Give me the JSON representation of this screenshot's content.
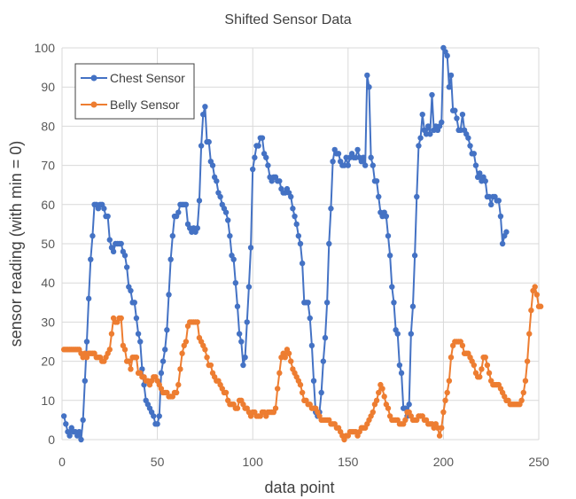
{
  "chart_data": {
    "type": "line",
    "title": "Shifted Sensor Data",
    "xlabel": "data point",
    "ylabel": "sensor reading (with min = 0)",
    "xlim": [
      0,
      250
    ],
    "ylim": [
      0,
      100
    ],
    "x_ticks": [
      "0",
      "50",
      "100",
      "150",
      "200",
      "250"
    ],
    "y_ticks": [
      "0",
      "10",
      "20",
      "30",
      "40",
      "50",
      "60",
      "70",
      "80",
      "90",
      "100"
    ],
    "grid": true,
    "legend_position": "top-left",
    "series": [
      {
        "name": "Chest Sensor",
        "color": "#4472c4",
        "marker": "circle",
        "values": [
          6,
          4,
          2,
          1,
          3,
          2,
          2,
          1,
          2,
          0,
          5,
          15,
          25,
          36,
          46,
          52,
          60,
          60,
          59,
          60,
          60,
          59,
          57,
          57,
          51,
          49,
          48,
          50,
          50,
          50,
          50,
          48,
          47,
          44,
          39,
          38,
          35,
          35,
          31,
          27,
          25,
          18,
          14,
          10,
          9,
          8,
          7,
          6,
          4,
          4,
          6,
          17,
          20,
          23,
          28,
          37,
          46,
          52,
          57,
          57,
          58,
          60,
          60,
          60,
          60,
          55,
          54,
          53,
          54,
          53,
          54,
          61,
          75,
          83,
          85,
          76,
          76,
          71,
          70,
          67,
          66,
          63,
          62,
          60,
          59,
          58,
          56,
          52,
          47,
          46,
          40,
          34,
          27,
          25,
          19,
          21,
          30,
          39,
          49,
          69,
          72,
          75,
          75,
          77,
          77,
          73,
          72,
          70,
          67,
          66,
          67,
          67,
          66,
          66,
          64,
          63,
          63,
          64,
          63,
          62,
          59,
          57,
          55,
          52,
          50,
          45,
          35,
          35,
          35,
          31,
          24,
          15,
          7,
          6,
          7,
          12,
          20,
          26,
          35,
          50,
          59,
          71,
          74,
          73,
          73,
          71,
          70,
          70,
          72,
          70,
          72,
          73,
          72,
          72,
          74,
          72,
          71,
          72,
          70,
          93,
          90,
          72,
          70,
          66,
          66,
          62,
          58,
          57,
          58,
          57,
          52,
          47,
          39,
          35,
          28,
          27,
          19,
          17,
          8,
          8,
          6,
          9,
          27,
          34,
          47,
          62,
          75,
          77,
          83,
          79,
          78,
          80,
          78,
          88,
          79,
          80,
          79,
          80,
          81,
          100,
          99,
          98,
          90,
          93,
          84,
          84,
          82,
          79,
          79,
          83,
          79,
          78,
          77,
          75,
          73,
          73,
          70,
          67,
          68,
          66,
          67,
          66,
          62,
          62,
          60,
          62,
          62,
          61,
          61,
          57,
          50,
          52,
          53
        ]
      },
      {
        "name": "Belly Sensor",
        "color": "#ed7d31",
        "marker": "circle",
        "values": [
          23,
          23,
          23,
          23,
          23,
          23,
          23,
          23,
          23,
          22,
          21,
          22,
          21,
          22,
          22,
          22,
          22,
          21,
          21,
          21,
          20,
          20,
          21,
          22,
          23,
          27,
          31,
          30,
          30,
          31,
          31,
          24,
          23,
          20,
          20,
          18,
          21,
          21,
          21,
          17,
          17,
          16,
          16,
          15,
          15,
          14,
          15,
          16,
          16,
          15,
          14,
          13,
          12,
          12,
          12,
          11,
          11,
          11,
          12,
          12,
          14,
          18,
          22,
          24,
          25,
          29,
          30,
          30,
          30,
          30,
          30,
          26,
          25,
          24,
          23,
          21,
          19,
          19,
          17,
          16,
          15,
          15,
          14,
          13,
          12,
          12,
          10,
          9,
          9,
          9,
          8,
          8,
          10,
          10,
          9,
          8,
          8,
          7,
          6,
          7,
          7,
          6,
          6,
          6,
          7,
          7,
          6,
          7,
          7,
          7,
          7,
          8,
          13,
          17,
          21,
          22,
          21,
          23,
          22,
          20,
          18,
          17,
          16,
          15,
          14,
          12,
          10,
          10,
          9,
          9,
          8,
          8,
          8,
          7,
          6,
          5,
          5,
          5,
          5,
          5,
          4,
          4,
          4,
          3,
          3,
          2,
          1,
          0,
          1,
          1,
          2,
          2,
          2,
          2,
          1,
          2,
          3,
          3,
          3,
          4,
          5,
          6,
          7,
          9,
          10,
          12,
          14,
          13,
          11,
          9,
          8,
          6,
          5,
          5,
          5,
          5,
          4,
          4,
          4,
          5,
          7,
          7,
          6,
          5,
          5,
          5,
          6,
          6,
          6,
          5,
          5,
          4,
          4,
          4,
          3,
          4,
          3,
          1,
          3,
          7,
          10,
          12,
          15,
          21,
          24,
          25,
          25,
          25,
          25,
          24,
          22,
          22,
          22,
          21,
          20,
          19,
          17,
          16,
          16,
          18,
          21,
          21,
          19,
          17,
          15,
          14,
          14,
          14,
          14,
          13,
          12,
          11,
          10,
          10,
          9,
          9,
          9,
          9,
          9,
          9,
          10,
          12,
          15,
          20,
          27,
          33,
          38,
          39,
          37,
          34,
          34
        ]
      }
    ]
  }
}
